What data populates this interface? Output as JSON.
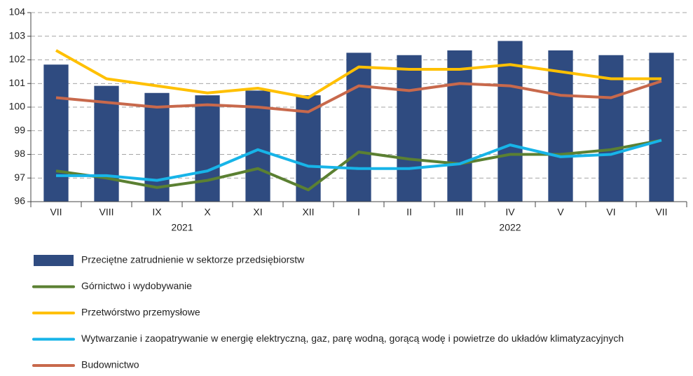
{
  "chart_data": {
    "type": "bar_line",
    "categories": [
      "VII",
      "VIII",
      "IX",
      "X",
      "XI",
      "XII",
      "I",
      "II",
      "III",
      "IV",
      "V",
      "VI",
      "VII"
    ],
    "x_group_labels": [
      "2021",
      "2022"
    ],
    "series": [
      {
        "name": "Przeciętne zatrudnienie w sektorze przedsiębiorstw",
        "type": "bar",
        "color": "#2f4b80",
        "values": [
          101.8,
          100.9,
          100.6,
          100.5,
          100.7,
          100.5,
          102.3,
          102.2,
          102.4,
          102.8,
          102.4,
          102.2,
          102.3
        ]
      },
      {
        "name": "Górnictwo i wydobywanie",
        "type": "line",
        "color": "#5b8032",
        "values": [
          97.3,
          97.0,
          96.6,
          96.9,
          97.4,
          96.5,
          98.1,
          97.8,
          97.6,
          98.0,
          98.0,
          98.2,
          98.6
        ]
      },
      {
        "name": "Przetwórstwo przemysłowe",
        "type": "line",
        "color": "#ffc000",
        "values": [
          102.4,
          101.2,
          100.9,
          100.6,
          100.8,
          100.4,
          101.7,
          101.6,
          101.6,
          101.8,
          101.5,
          101.2,
          101.2
        ]
      },
      {
        "name": "Wytwarzanie i zaopatrywanie w energię elektryczną, gaz, parę wodną, gorącą wodę i powietrze do układów klimatyzacyjnych",
        "type": "line",
        "color": "#17b4e8",
        "values": [
          97.1,
          97.1,
          96.9,
          97.3,
          98.2,
          97.5,
          97.4,
          97.4,
          97.6,
          98.4,
          97.9,
          98.0,
          98.6
        ]
      },
      {
        "name": "Budownictwo",
        "type": "line",
        "color": "#c8694c",
        "values": [
          100.4,
          100.2,
          100.0,
          100.1,
          100.0,
          99.8,
          100.9,
          100.7,
          101.0,
          100.9,
          100.5,
          100.4,
          101.1
        ]
      }
    ],
    "ylim": [
      96,
      104
    ],
    "yticks": [
      96,
      97,
      98,
      99,
      100,
      101,
      102,
      103,
      104
    ],
    "grid": true
  }
}
